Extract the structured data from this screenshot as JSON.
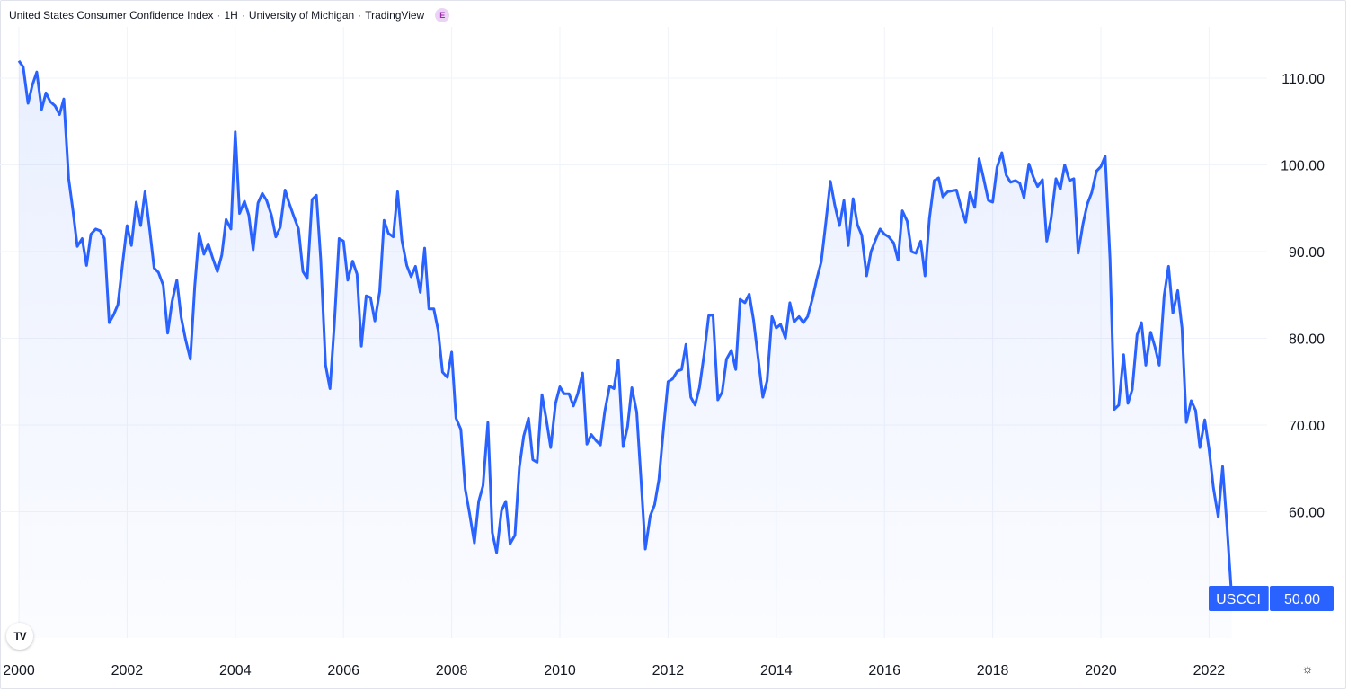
{
  "header": {
    "title": "United States Consumer Confidence Index",
    "interval": "1H",
    "source": "University of Michigan",
    "platform": "TradingView",
    "badge": "E"
  },
  "price_tag": {
    "symbol": "USCCI",
    "value": "50.00"
  },
  "logo_text": "TV",
  "colors": {
    "line": "#2962ff",
    "tag_bg": "#2962ff",
    "grid": "#f0f3fa"
  },
  "chart_data": {
    "type": "area",
    "title": "",
    "xlabel": "",
    "ylabel": "",
    "ylim": [
      45,
      115
    ],
    "xlim": [
      2000.0,
      2023.4
    ],
    "y_ticks": [
      "60.00",
      "70.00",
      "80.00",
      "90.00",
      "100.00",
      "110.00"
    ],
    "x_ticks": [
      "2000",
      "2002",
      "2004",
      "2006",
      "2008",
      "2010",
      "2012",
      "2014",
      "2016",
      "2018",
      "2020",
      "2022"
    ],
    "grid": true,
    "series": [
      {
        "name": "USCCI",
        "x": [
          2000.0,
          2000.08,
          2000.17,
          2000.25,
          2000.33,
          2000.42,
          2000.5,
          2000.58,
          2000.67,
          2000.75,
          2000.83,
          2000.92,
          2001.0,
          2001.08,
          2001.17,
          2001.25,
          2001.33,
          2001.42,
          2001.5,
          2001.58,
          2001.67,
          2001.75,
          2001.83,
          2001.92,
          2002.0,
          2002.08,
          2002.17,
          2002.25,
          2002.33,
          2002.42,
          2002.5,
          2002.58,
          2002.67,
          2002.75,
          2002.83,
          2002.92,
          2003.0,
          2003.08,
          2003.17,
          2003.25,
          2003.33,
          2003.42,
          2003.5,
          2003.58,
          2003.67,
          2003.75,
          2003.83,
          2003.92,
          2004.0,
          2004.08,
          2004.17,
          2004.25,
          2004.33,
          2004.42,
          2004.5,
          2004.58,
          2004.67,
          2004.75,
          2004.83,
          2004.92,
          2005.0,
          2005.08,
          2005.17,
          2005.25,
          2005.33,
          2005.42,
          2005.5,
          2005.58,
          2005.67,
          2005.75,
          2005.83,
          2005.92,
          2006.0,
          2006.08,
          2006.17,
          2006.25,
          2006.33,
          2006.42,
          2006.5,
          2006.58,
          2006.67,
          2006.75,
          2006.83,
          2006.92,
          2007.0,
          2007.08,
          2007.17,
          2007.25,
          2007.33,
          2007.42,
          2007.5,
          2007.58,
          2007.67,
          2007.75,
          2007.83,
          2007.92,
          2008.0,
          2008.08,
          2008.17,
          2008.25,
          2008.33,
          2008.42,
          2008.5,
          2008.58,
          2008.67,
          2008.75,
          2008.83,
          2008.92,
          2009.0,
          2009.08,
          2009.17,
          2009.25,
          2009.33,
          2009.42,
          2009.5,
          2009.58,
          2009.67,
          2009.75,
          2009.83,
          2009.92,
          2010.0,
          2010.08,
          2010.17,
          2010.25,
          2010.33,
          2010.42,
          2010.5,
          2010.58,
          2010.67,
          2010.75,
          2010.83,
          2010.92,
          2011.0,
          2011.08,
          2011.17,
          2011.25,
          2011.33,
          2011.42,
          2011.5,
          2011.58,
          2011.67,
          2011.75,
          2011.83,
          2011.92,
          2012.0,
          2012.08,
          2012.17,
          2012.25,
          2012.33,
          2012.42,
          2012.5,
          2012.58,
          2012.67,
          2012.75,
          2012.83,
          2012.92,
          2013.0,
          2013.08,
          2013.17,
          2013.25,
          2013.33,
          2013.42,
          2013.5,
          2013.58,
          2013.67,
          2013.75,
          2013.83,
          2013.92,
          2014.0,
          2014.08,
          2014.17,
          2014.25,
          2014.33,
          2014.42,
          2014.5,
          2014.58,
          2014.67,
          2014.75,
          2014.83,
          2014.92,
          2015.0,
          2015.08,
          2015.17,
          2015.25,
          2015.33,
          2015.42,
          2015.5,
          2015.58,
          2015.67,
          2015.75,
          2015.83,
          2015.92,
          2016.0,
          2016.08,
          2016.17,
          2016.25,
          2016.33,
          2016.42,
          2016.5,
          2016.58,
          2016.67,
          2016.75,
          2016.83,
          2016.92,
          2017.0,
          2017.08,
          2017.17,
          2017.25,
          2017.33,
          2017.42,
          2017.5,
          2017.58,
          2017.67,
          2017.75,
          2017.83,
          2017.92,
          2018.0,
          2018.08,
          2018.17,
          2018.25,
          2018.33,
          2018.42,
          2018.5,
          2018.58,
          2018.67,
          2018.75,
          2018.83,
          2018.92,
          2019.0,
          2019.08,
          2019.17,
          2019.25,
          2019.33,
          2019.42,
          2019.5,
          2019.58,
          2019.67,
          2019.75,
          2019.83,
          2019.92,
          2020.0,
          2020.08,
          2020.17,
          2020.25,
          2020.33,
          2020.42,
          2020.5,
          2020.58,
          2020.67,
          2020.75,
          2020.83,
          2020.92,
          2021.0,
          2021.08,
          2021.17,
          2021.25,
          2021.33,
          2021.42,
          2021.5,
          2021.58,
          2021.67,
          2021.75,
          2021.83,
          2021.92,
          2022.0,
          2022.08,
          2022.17,
          2022.25,
          2022.33,
          2022.42
        ],
        "values": [
          112.0,
          111.3,
          107.1,
          109.2,
          110.7,
          106.4,
          108.3,
          107.3,
          106.8,
          105.8,
          107.6,
          98.4,
          94.7,
          90.6,
          91.5,
          88.4,
          92.0,
          92.6,
          92.4,
          91.5,
          81.8,
          82.7,
          83.9,
          88.8,
          93.0,
          90.7,
          95.7,
          93.0,
          96.9,
          92.4,
          88.1,
          87.6,
          86.1,
          80.6,
          84.2,
          86.7,
          82.4,
          79.9,
          77.6,
          86.0,
          92.1,
          89.7,
          90.9,
          89.3,
          87.7,
          89.6,
          93.7,
          92.6,
          103.8,
          94.4,
          95.8,
          94.2,
          90.2,
          95.6,
          96.7,
          95.9,
          94.2,
          91.7,
          92.8,
          97.1,
          95.5,
          94.1,
          92.6,
          87.7,
          86.9,
          96.0,
          96.5,
          89.1,
          76.9,
          74.2,
          81.6,
          91.5,
          91.2,
          86.7,
          88.9,
          87.4,
          79.1,
          84.9,
          84.7,
          82.0,
          85.4,
          93.6,
          92.1,
          91.7,
          96.9,
          91.3,
          88.4,
          87.1,
          88.3,
          85.3,
          90.4,
          83.4,
          83.4,
          80.9,
          76.1,
          75.5,
          78.4,
          70.8,
          69.5,
          62.6,
          59.8,
          56.4,
          61.2,
          63.0,
          70.3,
          57.6,
          55.3,
          60.1,
          61.2,
          56.3,
          57.3,
          65.1,
          68.7,
          70.8,
          66.0,
          65.7,
          73.5,
          70.6,
          67.4,
          72.5,
          74.4,
          73.6,
          73.6,
          72.2,
          73.6,
          76.0,
          67.8,
          68.9,
          68.2,
          67.7,
          71.6,
          74.5,
          74.2,
          77.5,
          67.5,
          69.8,
          74.3,
          71.5,
          63.7,
          55.7,
          59.5,
          60.8,
          63.7,
          69.9,
          75.0,
          75.3,
          76.2,
          76.4,
          79.3,
          73.2,
          72.3,
          74.3,
          78.3,
          82.6,
          82.7,
          72.9,
          73.8,
          77.6,
          78.6,
          76.4,
          84.5,
          84.1,
          85.1,
          82.1,
          77.5,
          73.2,
          75.1,
          82.5,
          81.2,
          81.6,
          80.0,
          84.1,
          81.9,
          82.5,
          81.8,
          82.5,
          84.6,
          86.9,
          88.8,
          93.6,
          98.1,
          95.4,
          93.0,
          95.9,
          90.7,
          96.1,
          93.1,
          91.9,
          87.2,
          90.0,
          91.3,
          92.6,
          92.0,
          91.7,
          91.0,
          89.0,
          94.7,
          93.5,
          90.0,
          89.8,
          91.2,
          87.2,
          93.8,
          98.2,
          98.5,
          96.3,
          96.9,
          97.0,
          97.1,
          95.0,
          93.4,
          96.8,
          95.1,
          100.7,
          98.5,
          95.9,
          95.7,
          99.7,
          101.4,
          98.8,
          98.0,
          98.2,
          97.9,
          96.2,
          100.1,
          98.6,
          97.5,
          98.3,
          91.2,
          93.8,
          98.4,
          97.2,
          100.0,
          98.2,
          98.4,
          89.8,
          93.2,
          95.5,
          96.8,
          99.3,
          99.8,
          101.0,
          89.1,
          71.8,
          72.3,
          78.1,
          72.5,
          74.1,
          80.4,
          81.8,
          76.9,
          80.7,
          79.0,
          76.9,
          84.9,
          88.3,
          82.9,
          85.5,
          81.2,
          70.3,
          72.8,
          71.7,
          67.4,
          70.6,
          67.2,
          62.8,
          59.4,
          65.2,
          58.4,
          50.0
        ]
      }
    ]
  }
}
